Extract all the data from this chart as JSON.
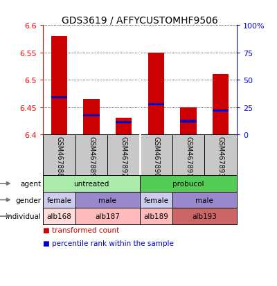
{
  "title": "GDS3619 / AFFYCUSTOMHF9506",
  "samples": [
    "GSM467888",
    "GSM467889",
    "GSM467892",
    "GSM467890",
    "GSM467891",
    "GSM467893"
  ],
  "bar_bottoms": [
    6.4,
    6.4,
    6.4,
    6.4,
    6.4,
    6.4
  ],
  "bar_tops": [
    6.58,
    6.465,
    6.43,
    6.55,
    6.45,
    6.51
  ],
  "blue_positions": [
    6.468,
    6.435,
    6.422,
    6.455,
    6.424,
    6.444
  ],
  "ylim": [
    6.4,
    6.6
  ],
  "yticks_left": [
    6.4,
    6.45,
    6.5,
    6.55,
    6.6
  ],
  "yticks_right": [
    0,
    25,
    50,
    75,
    100
  ],
  "ytick_right_labels": [
    "0",
    "25",
    "50",
    "75",
    "100%"
  ],
  "bar_color": "#cc0000",
  "blue_color": "#0000cc",
  "bg_color": "#ffffff",
  "sample_bg": "#c8c8c8",
  "agent_row": {
    "groups": [
      {
        "label": "untreated",
        "span": [
          0,
          3
        ],
        "color": "#aaeaaa"
      },
      {
        "label": "probucol",
        "span": [
          3,
          6
        ],
        "color": "#55cc55"
      }
    ]
  },
  "gender_row": {
    "groups": [
      {
        "label": "female",
        "span": [
          0,
          1
        ],
        "color": "#ccccee"
      },
      {
        "label": "male",
        "span": [
          1,
          3
        ],
        "color": "#9988cc"
      },
      {
        "label": "female",
        "span": [
          3,
          4
        ],
        "color": "#ccccee"
      },
      {
        "label": "male",
        "span": [
          4,
          6
        ],
        "color": "#9988cc"
      }
    ]
  },
  "individual_row": {
    "groups": [
      {
        "label": "alb168",
        "span": [
          0,
          1
        ],
        "color": "#ffdddd"
      },
      {
        "label": "alb187",
        "span": [
          1,
          3
        ],
        "color": "#ffbbbb"
      },
      {
        "label": "alb189",
        "span": [
          3,
          4
        ],
        "color": "#ffbbbb"
      },
      {
        "label": "alb193",
        "span": [
          4,
          6
        ],
        "color": "#cc6666"
      }
    ]
  },
  "row_labels": [
    "agent",
    "gender",
    "individual"
  ],
  "legend_items": [
    {
      "color": "#cc0000",
      "label": "transformed count"
    },
    {
      "color": "#0000cc",
      "label": "percentile rank within the sample"
    }
  ]
}
